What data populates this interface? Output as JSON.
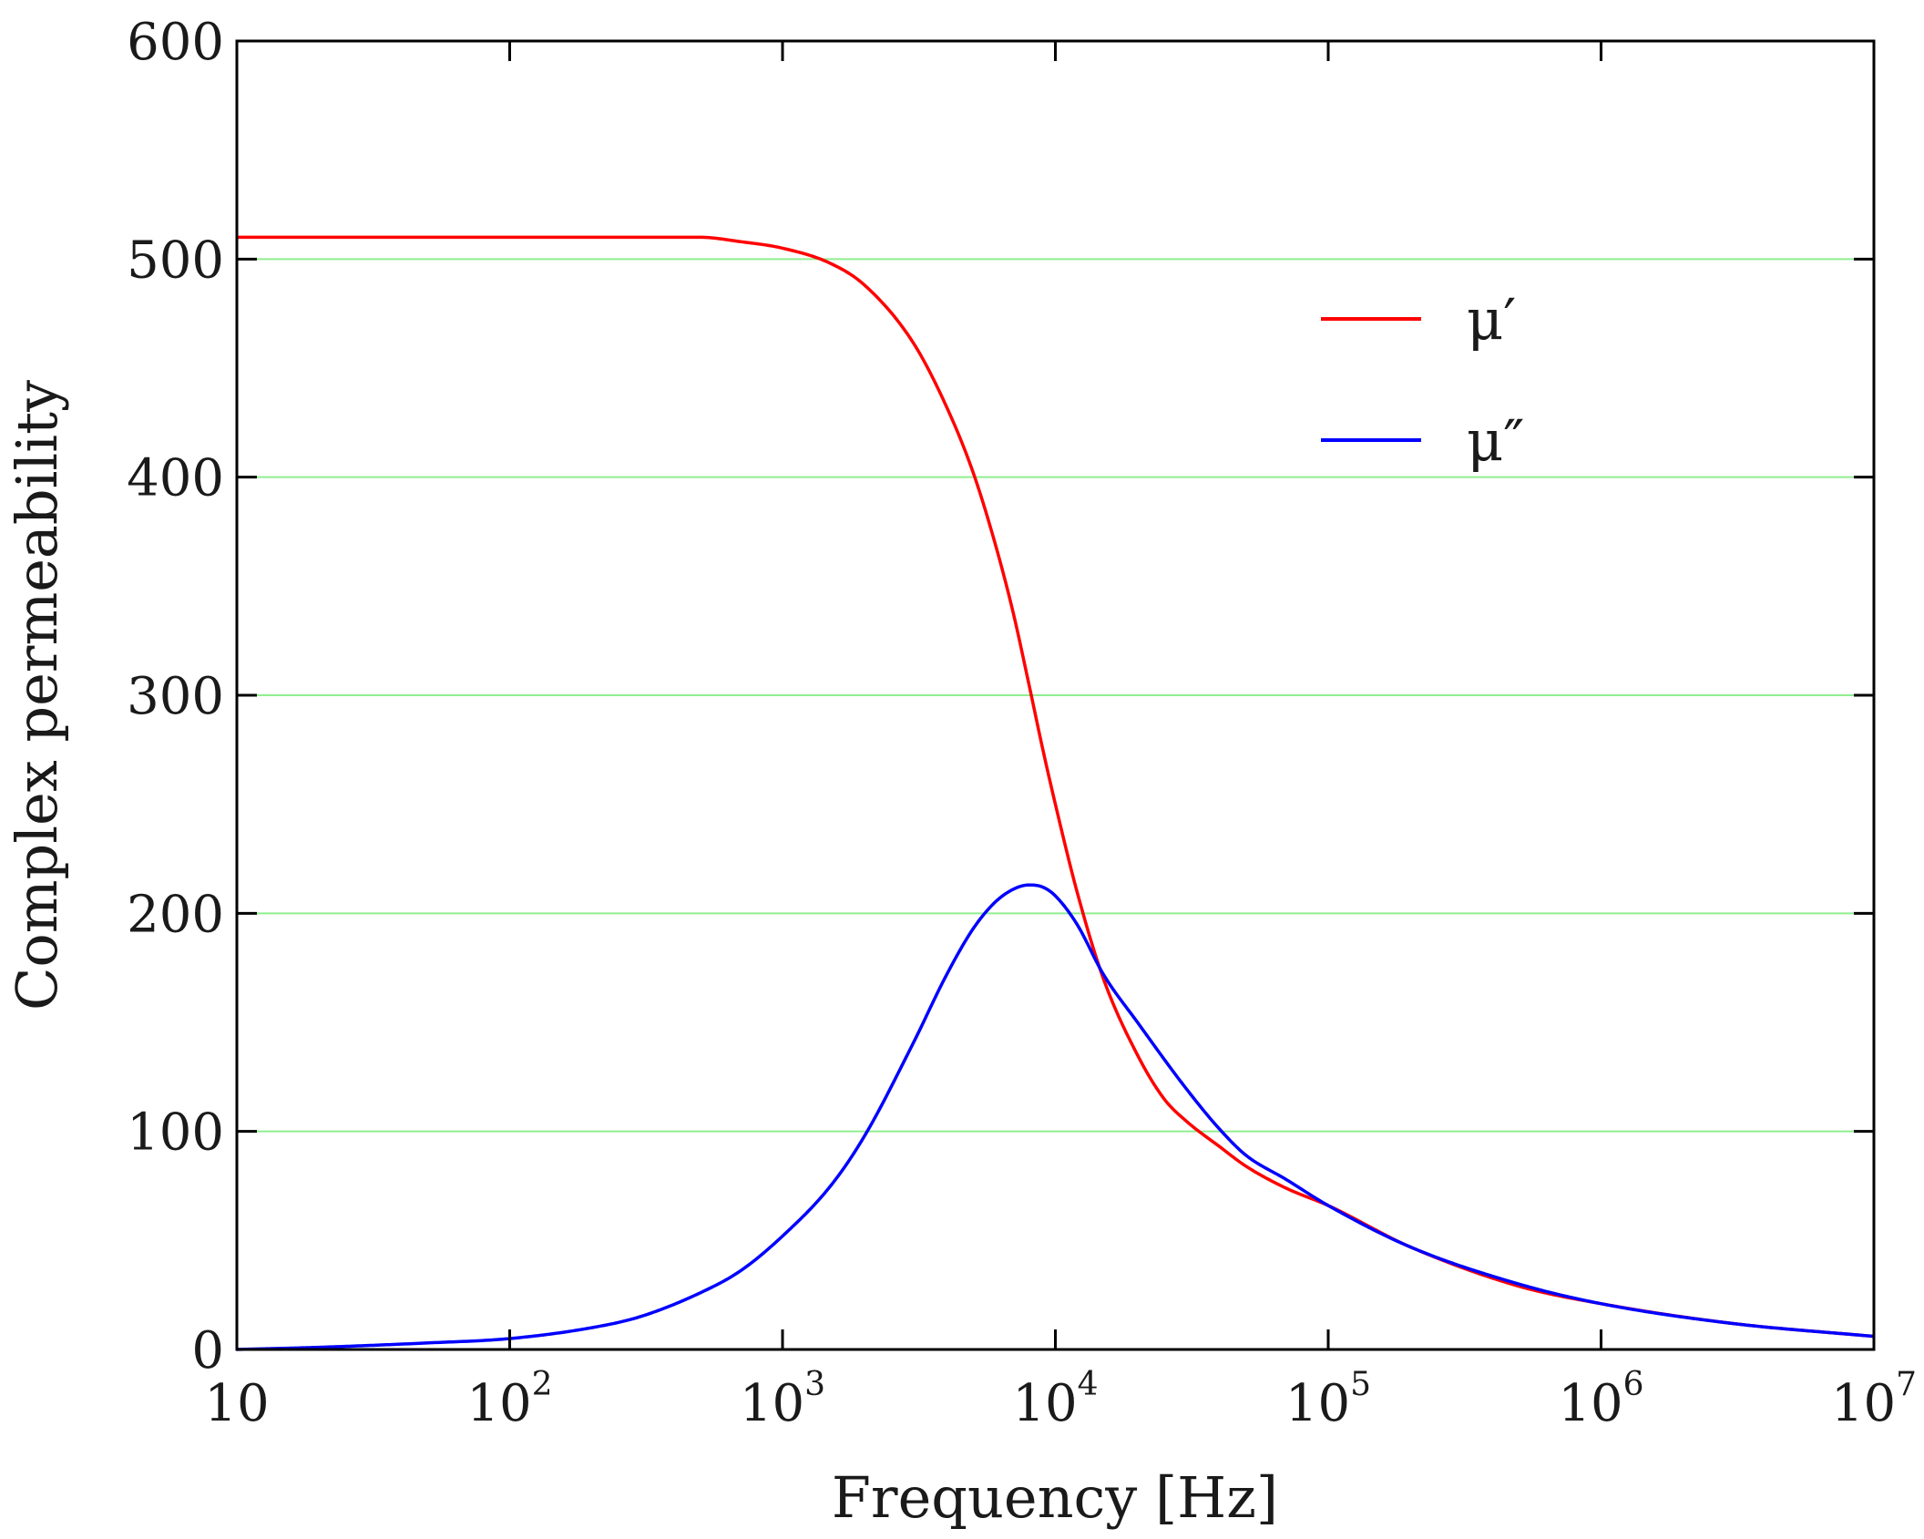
{
  "chart_data": {
    "type": "line",
    "title": "",
    "xlabel": "Frequency [Hz]",
    "ylabel": "Complex permeability",
    "xscale": "log",
    "xlim": [
      10,
      10000000
    ],
    "ylim": [
      0,
      600
    ],
    "grid": "horizontal",
    "legend_position": "top-right",
    "x_ticks": [
      {
        "value": 10,
        "base": "10",
        "exp": ""
      },
      {
        "value": 100,
        "base": "10",
        "exp": "2"
      },
      {
        "value": 1000,
        "base": "10",
        "exp": "3"
      },
      {
        "value": 10000,
        "base": "10",
        "exp": "4"
      },
      {
        "value": 100000,
        "base": "10",
        "exp": "5"
      },
      {
        "value": 1000000,
        "base": "10",
        "exp": "6"
      },
      {
        "value": 10000000,
        "base": "10",
        "exp": "7"
      }
    ],
    "y_ticks": [
      {
        "value": 0,
        "label": "0"
      },
      {
        "value": 100,
        "label": "100"
      },
      {
        "value": 200,
        "label": "200"
      },
      {
        "value": 300,
        "label": "300"
      },
      {
        "value": 400,
        "label": "400"
      },
      {
        "value": 500,
        "label": "500"
      },
      {
        "value": 600,
        "label": "600"
      }
    ],
    "series": [
      {
        "name": "μ′",
        "color": "#ff0000",
        "x": [
          10,
          30,
          100,
          300,
          500,
          700,
          1000,
          1500,
          2000,
          3000,
          4000,
          5000,
          6000,
          7000,
          8000,
          9000,
          10000,
          12000,
          15000,
          20000,
          25000,
          30000,
          40000,
          50000,
          70000,
          100000,
          200000,
          500000,
          1000000,
          3000000,
          10000000
        ],
        "values": [
          510,
          510,
          510,
          510,
          510,
          508,
          505,
          498,
          488,
          462,
          432,
          402,
          370,
          338,
          305,
          275,
          250,
          210,
          170,
          135,
          115,
          105,
          93,
          84,
          74,
          66,
          47,
          29,
          21,
          12,
          6
        ]
      },
      {
        "name": "μ″",
        "color": "#0000ff",
        "x": [
          10,
          20,
          50,
          100,
          200,
          300,
          500,
          700,
          1000,
          1500,
          2000,
          3000,
          4000,
          5000,
          6000,
          7000,
          8000,
          9000,
          10000,
          12000,
          15000,
          20000,
          30000,
          40000,
          50000,
          70000,
          100000,
          200000,
          500000,
          1000000,
          3000000,
          10000000
        ],
        "values": [
          0,
          1,
          3,
          5,
          10,
          15,
          26,
          36,
          52,
          75,
          98,
          140,
          172,
          193,
          205,
          211,
          213,
          212,
          208,
          195,
          172,
          150,
          120,
          101,
          89,
          78,
          66,
          47,
          30,
          21,
          12,
          6
        ]
      }
    ]
  }
}
